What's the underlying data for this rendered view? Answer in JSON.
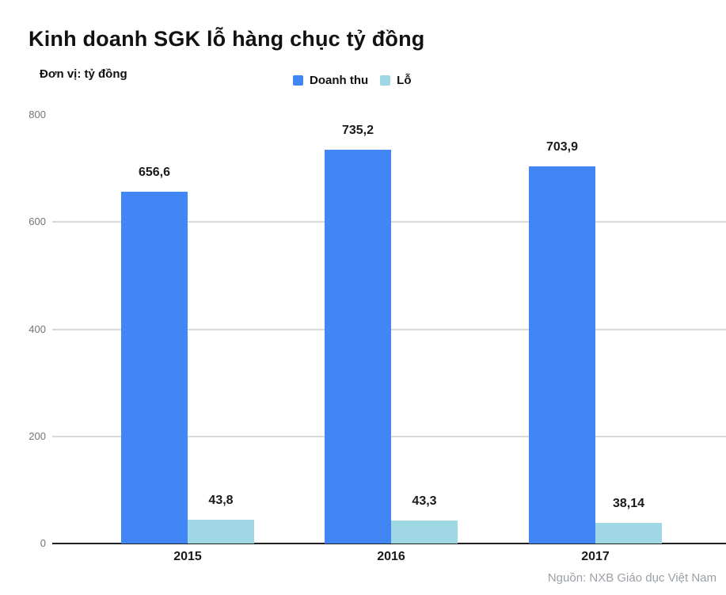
{
  "title": "Kinh doanh SGK lỗ hàng chục tỷ đồng",
  "unit_label": "Đơn vị: tỷ đồng",
  "legend": {
    "items": [
      {
        "label": "Doanh thu",
        "color": "#4285f4"
      },
      {
        "label": "Lỗ",
        "color": "#9fd7e4"
      }
    ]
  },
  "source": "Nguồn: NXB Giáo dục Việt Nam",
  "colors": {
    "doanh_thu": "#4285f4",
    "lo": "#9fd7e4",
    "gridline": "#d9d9d9",
    "baseline": "#212121",
    "axis_text": "#757575"
  },
  "chart_data": {
    "type": "bar",
    "title": "Kinh doanh SGK lỗ hàng chục tỷ đồng",
    "unit": "tỷ đồng",
    "categories": [
      "2015",
      "2016",
      "2017"
    ],
    "series": [
      {
        "name": "Doanh thu",
        "color": "#4285f4",
        "values": [
          656.6,
          735.2,
          703.9
        ],
        "labels": [
          "656,6",
          "735,2",
          "703,9"
        ]
      },
      {
        "name": "Lỗ",
        "color": "#9fd7e4",
        "values": [
          43.8,
          43.3,
          38.14
        ],
        "labels": [
          "43,8",
          "43,3",
          "38,14"
        ]
      }
    ],
    "ylim": [
      0,
      800
    ],
    "y_ticks": [
      0,
      200,
      400,
      600,
      800
    ],
    "grid": true,
    "legend_position": "top",
    "source": "Nguồn: NXB Giáo dục Việt Nam"
  }
}
